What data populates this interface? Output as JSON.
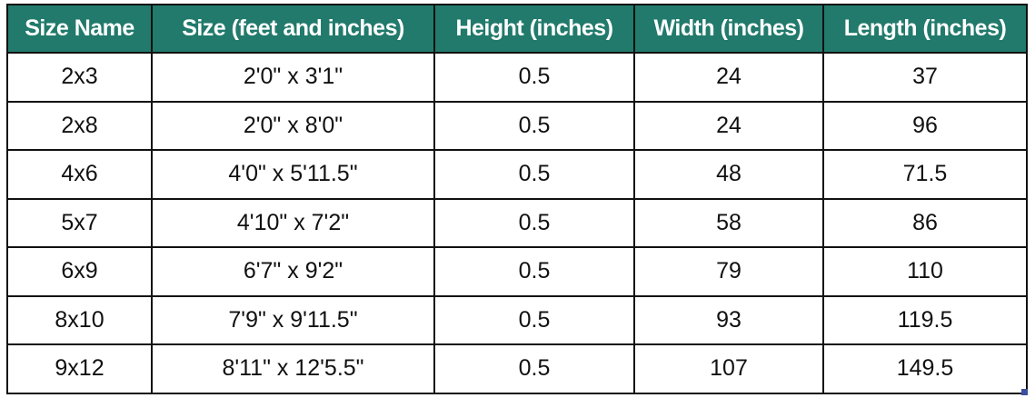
{
  "table": {
    "headers": [
      "Size Name",
      "Size (feet and inches)",
      "Height (inches)",
      "Width (inches)",
      "Length (inches)"
    ],
    "rows": [
      [
        "2x3",
        "2'0\" x 3'1\"",
        "0.5",
        "24",
        "37"
      ],
      [
        "2x8",
        "2'0\" x 8'0\"",
        "0.5",
        "24",
        "96"
      ],
      [
        "4x6",
        "4'0\" x 5'11.5\"",
        "0.5",
        "48",
        "71.5"
      ],
      [
        "5x7",
        "4'10\" x 7'2\"",
        "0.5",
        "58",
        "86"
      ],
      [
        "6x9",
        "6'7\" x 9'2\"",
        "0.5",
        "79",
        "110"
      ],
      [
        "8x10",
        "7'9\" x 9'11.5\"",
        "0.5",
        "93",
        "119.5"
      ],
      [
        "9x12",
        "8'11\" x 12'5.5\"",
        "0.5",
        "107",
        "149.5"
      ]
    ]
  },
  "colors": {
    "header_bg": "#217a6b",
    "header_text": "#ffffff"
  }
}
